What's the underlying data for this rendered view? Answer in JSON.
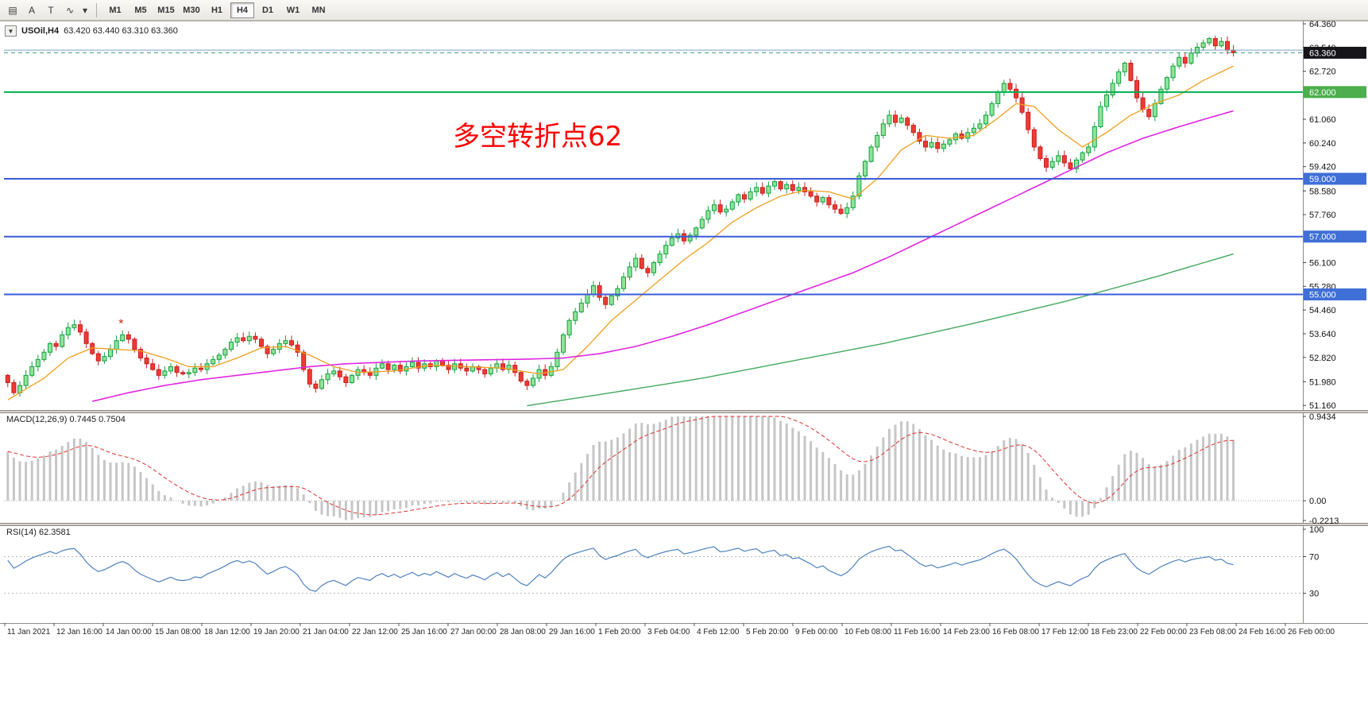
{
  "toolbar": {
    "tools": [
      {
        "name": "chart-mode-icon",
        "glyph": "▤"
      },
      {
        "name": "annotate-text-icon",
        "glyph": "A"
      },
      {
        "name": "template-icon",
        "glyph": "T"
      },
      {
        "name": "indicators-icon",
        "glyph": "∿"
      },
      {
        "name": "dropdown-caret-icon",
        "glyph": "▾"
      }
    ],
    "timeframes": [
      "M1",
      "M5",
      "M15",
      "M30",
      "H1",
      "H4",
      "D1",
      "W1",
      "MN"
    ],
    "active_timeframe": "H4"
  },
  "chart_data": {
    "type": "candlestick",
    "title": "USOil H4 chart",
    "symbol": "USOil,H4",
    "symbol_toggle_glyph": "▼",
    "ohlc_display": "63.420 63.440 63.310 63.360",
    "last_price": "63.360",
    "annotation": {
      "text": "多空转折点62",
      "color": "#ff0000"
    },
    "y_range": [
      51.0,
      64.47
    ],
    "first_open": 52.2,
    "closes": [
      51.95,
      51.6,
      51.85,
      52.2,
      52.5,
      52.75,
      53.0,
      53.3,
      53.2,
      53.6,
      53.85,
      53.95,
      53.7,
      53.3,
      52.95,
      52.7,
      52.85,
      53.1,
      53.4,
      53.6,
      53.45,
      53.1,
      52.8,
      52.6,
      52.4,
      52.2,
      52.35,
      52.5,
      52.3,
      52.25,
      52.3,
      52.45,
      52.4,
      52.6,
      52.75,
      52.9,
      53.1,
      53.35,
      53.5,
      53.4,
      53.55,
      53.45,
      53.2,
      52.95,
      53.1,
      53.3,
      53.4,
      53.25,
      53.0,
      52.4,
      51.9,
      51.75,
      52.05,
      52.25,
      52.35,
      52.15,
      51.95,
      52.2,
      52.4,
      52.3,
      52.2,
      52.45,
      52.6,
      52.4,
      52.55,
      52.35,
      52.5,
      52.65,
      52.45,
      52.6,
      52.5,
      52.7,
      52.55,
      52.4,
      52.6,
      52.45,
      52.35,
      52.5,
      52.4,
      52.25,
      52.45,
      52.6,
      52.4,
      52.55,
      52.3,
      52.0,
      51.85,
      52.1,
      52.4,
      52.2,
      52.5,
      53.0,
      53.6,
      54.1,
      54.4,
      54.7,
      55.0,
      55.3,
      54.9,
      54.65,
      54.95,
      55.2,
      55.6,
      55.95,
      56.25,
      55.9,
      55.75,
      56.1,
      56.4,
      56.7,
      56.95,
      57.1,
      56.85,
      57.05,
      57.3,
      57.6,
      57.9,
      58.1,
      57.85,
      57.95,
      58.2,
      58.45,
      58.3,
      58.55,
      58.7,
      58.5,
      58.75,
      58.9,
      58.65,
      58.8,
      58.6,
      58.7,
      58.55,
      58.4,
      58.2,
      58.35,
      58.1,
      57.95,
      57.8,
      58.0,
      58.4,
      59.1,
      59.6,
      60.1,
      60.5,
      60.9,
      61.2,
      60.95,
      61.1,
      60.85,
      60.6,
      60.3,
      60.1,
      60.25,
      60.05,
      60.2,
      60.35,
      60.55,
      60.4,
      60.6,
      60.75,
      60.9,
      61.2,
      61.6,
      62.0,
      62.3,
      62.1,
      61.8,
      61.3,
      60.7,
      60.1,
      59.7,
      59.4,
      59.6,
      59.8,
      59.55,
      59.35,
      59.65,
      59.9,
      60.1,
      60.8,
      61.5,
      61.9,
      62.3,
      62.7,
      63.0,
      62.4,
      61.8,
      61.4,
      61.15,
      61.6,
      62.1,
      62.5,
      62.9,
      63.2,
      63.0,
      63.35,
      63.55,
      63.7,
      63.85,
      63.6,
      63.75,
      63.45,
      63.36
    ],
    "colors": {
      "up_fill": "#8fe39a",
      "up_stroke": "#12a13e",
      "down_fill": "#ee3b33",
      "down_stroke": "#c81e1e"
    },
    "marker": {
      "index": 19,
      "price": 53.85,
      "glyph": "*",
      "color": "#cc2222"
    },
    "ma_lines": [
      {
        "name": "fast-ma-orange",
        "color": "#ef9f1f",
        "width": 1.3,
        "anchors": [
          [
            0,
            51.35
          ],
          [
            6,
            52.1
          ],
          [
            10,
            52.8
          ],
          [
            14,
            53.15
          ],
          [
            18,
            53.1
          ],
          [
            22,
            53.05
          ],
          [
            26,
            52.8
          ],
          [
            30,
            52.5
          ],
          [
            34,
            52.5
          ],
          [
            38,
            52.8
          ],
          [
            42,
            53.15
          ],
          [
            46,
            53.2
          ],
          [
            50,
            52.9
          ],
          [
            54,
            52.5
          ],
          [
            58,
            52.3
          ],
          [
            64,
            52.35
          ],
          [
            70,
            52.55
          ],
          [
            76,
            52.5
          ],
          [
            82,
            52.45
          ],
          [
            88,
            52.25
          ],
          [
            92,
            52.4
          ],
          [
            96,
            53.2
          ],
          [
            100,
            54.1
          ],
          [
            104,
            54.8
          ],
          [
            108,
            55.5
          ],
          [
            112,
            56.2
          ],
          [
            116,
            56.8
          ],
          [
            120,
            57.5
          ],
          [
            124,
            58.0
          ],
          [
            128,
            58.4
          ],
          [
            132,
            58.6
          ],
          [
            136,
            58.55
          ],
          [
            140,
            58.3
          ],
          [
            144,
            59.0
          ],
          [
            148,
            60.0
          ],
          [
            152,
            60.5
          ],
          [
            156,
            60.4
          ],
          [
            160,
            60.5
          ],
          [
            164,
            61.1
          ],
          [
            167,
            61.6
          ],
          [
            170,
            61.5
          ],
          [
            174,
            60.7
          ],
          [
            178,
            60.1
          ],
          [
            182,
            60.6
          ],
          [
            186,
            61.2
          ],
          [
            190,
            61.6
          ],
          [
            194,
            61.9
          ],
          [
            198,
            62.4
          ],
          [
            203,
            62.9
          ]
        ]
      },
      {
        "name": "mid-ma-magenta",
        "color": "#e026e0",
        "width": 1.6,
        "anchors": [
          [
            14,
            51.3
          ],
          [
            20,
            51.6
          ],
          [
            26,
            51.85
          ],
          [
            32,
            52.05
          ],
          [
            38,
            52.2
          ],
          [
            44,
            52.35
          ],
          [
            50,
            52.5
          ],
          [
            56,
            52.6
          ],
          [
            62,
            52.65
          ],
          [
            68,
            52.7
          ],
          [
            74,
            52.72
          ],
          [
            80,
            52.74
          ],
          [
            86,
            52.76
          ],
          [
            92,
            52.8
          ],
          [
            98,
            52.95
          ],
          [
            104,
            53.2
          ],
          [
            110,
            53.55
          ],
          [
            116,
            53.95
          ],
          [
            122,
            54.4
          ],
          [
            128,
            54.85
          ],
          [
            134,
            55.3
          ],
          [
            140,
            55.75
          ],
          [
            146,
            56.3
          ],
          [
            152,
            56.9
          ],
          [
            158,
            57.5
          ],
          [
            164,
            58.1
          ],
          [
            170,
            58.7
          ],
          [
            176,
            59.3
          ],
          [
            182,
            59.9
          ],
          [
            188,
            60.4
          ],
          [
            194,
            60.8
          ],
          [
            198,
            61.05
          ],
          [
            203,
            61.35
          ]
        ]
      },
      {
        "name": "slow-ma-green",
        "color": "#44a860",
        "width": 1.4,
        "anchors": [
          [
            86,
            51.15
          ],
          [
            100,
            51.6
          ],
          [
            115,
            52.1
          ],
          [
            130,
            52.7
          ],
          [
            145,
            53.3
          ],
          [
            160,
            54.0
          ],
          [
            175,
            54.75
          ],
          [
            190,
            55.6
          ],
          [
            203,
            56.4
          ]
        ]
      }
    ],
    "level_lines": [
      {
        "price": 63.45,
        "color": "#7aa3c0",
        "style": "solid",
        "width": 1
      },
      {
        "price": 63.36,
        "color": "#3d9990",
        "style": "dashed",
        "width": 1,
        "badge": {
          "text": "63.360",
          "bg": "#15151a",
          "fg": "#ffffff"
        }
      },
      {
        "price": 62.0,
        "color": "#00b050",
        "style": "solid",
        "width": 2,
        "badge": {
          "text": "62.000",
          "bg": "#4cae4c",
          "fg": "#ffffff"
        }
      },
      {
        "price": 59.0,
        "color": "#3b5bdb",
        "style": "solid",
        "width": 2,
        "badge": {
          "text": "59.000",
          "bg": "#3f6fd7",
          "fg": "#ffffff"
        }
      },
      {
        "price": 57.0,
        "color": "#3b5bdb",
        "style": "solid",
        "width": 2,
        "badge": {
          "text": "57.000",
          "bg": "#3f6fd7",
          "fg": "#ffffff"
        }
      },
      {
        "price": 55.0,
        "color": "#3b5bdb",
        "style": "solid",
        "width": 2,
        "badge": {
          "text": "55.000",
          "bg": "#3f6fd7",
          "fg": "#ffffff"
        }
      }
    ],
    "y_axis_labels": [
      "64.360",
      "63.540",
      "62.720",
      "61.060",
      "60.240",
      "59.420",
      "58.580",
      "57.760",
      "56.100",
      "55.280",
      "54.460",
      "53.640",
      "52.820",
      "51.980",
      "51.160"
    ],
    "x_labels": [
      "11 Jan 2021",
      "12 Jan 16:00",
      "14 Jan 00:00",
      "15 Jan 08:00",
      "18 Jan 12:00",
      "19 Jan 20:00",
      "21 Jan 04:00",
      "22 Jan 12:00",
      "25 Jan 16:00",
      "27 Jan 00:00",
      "28 Jan 08:00",
      "29 Jan 16:00",
      "1 Feb 20:00",
      "3 Feb 04:00",
      "4 Feb 12:00",
      "5 Feb 20:00",
      "9 Feb 00:00",
      "10 Feb 08:00",
      "11 Feb 16:00",
      "14 Feb 23:00",
      "16 Feb 08:00",
      "17 Feb 12:00",
      "18 Feb 23:00",
      "22 Feb 00:00",
      "23 Feb 08:00",
      "24 Feb 16:00",
      "26 Feb 00:00"
    ],
    "indicators": {
      "macd": {
        "label": "MACD(12,26,9)",
        "values": "0.7445 0.7504",
        "axis_labels": [
          "0.9434",
          "0.00",
          "-0.2213"
        ],
        "max": 0.9434,
        "min": -0.2213,
        "histogram_color": "#c6c6c6",
        "signal_color": "#e03030"
      },
      "rsi": {
        "label": "RSI(14)",
        "value": "62.3581",
        "axis_labels": [
          "100",
          "70",
          "30"
        ],
        "levels": [
          70,
          30
        ],
        "line_color": "#4f81bd"
      }
    }
  }
}
